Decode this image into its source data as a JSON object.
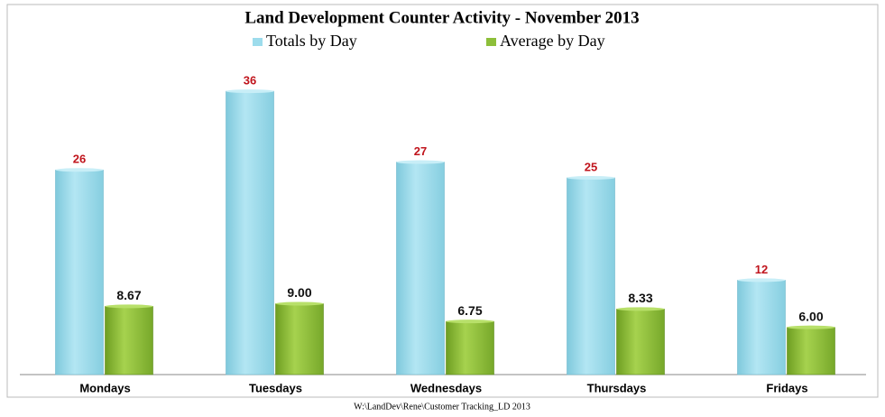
{
  "chart_data": {
    "type": "bar",
    "title": "Land Development Counter Activity - November 2013",
    "categories": [
      "Mondays",
      "Tuesdays",
      "Wednesdays",
      "Thursdays",
      "Fridays"
    ],
    "series": [
      {
        "name": "Totals by Day",
        "color": "#9ddcec",
        "values": [
          26,
          36,
          27,
          25,
          12
        ]
      },
      {
        "name": "Average by Day",
        "color": "#8dbf3a",
        "values": [
          8.67,
          9,
          6.75,
          8.33,
          6
        ],
        "value_labels": [
          "8.67",
          "9.00",
          "6.75",
          "8.33",
          "6.00"
        ]
      }
    ],
    "footer": "W:\\LandDev\\Rene\\Customer Tracking_LD 2013"
  }
}
